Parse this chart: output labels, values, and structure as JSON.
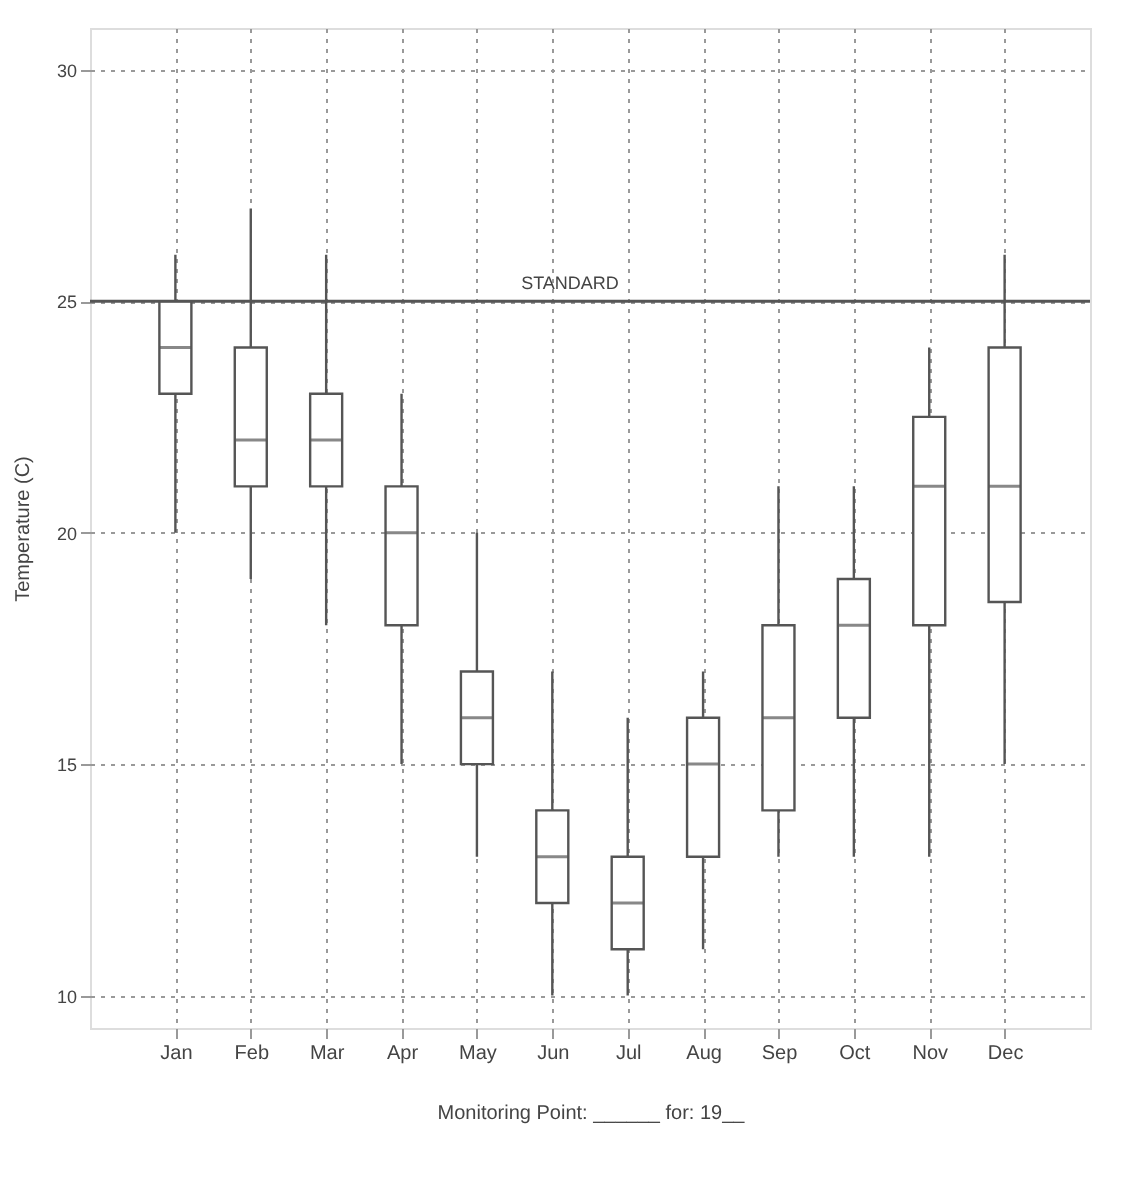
{
  "chart_data": {
    "type": "box",
    "xlabel": "Monitoring Point: ______ for: 19__",
    "ylabel": "Temperature (C)",
    "categories": [
      "Jan",
      "Feb",
      "Mar",
      "Apr",
      "May",
      "Jun",
      "Jul",
      "Aug",
      "Sep",
      "Oct",
      "Nov",
      "Dec"
    ],
    "boxes": [
      {
        "low": 20,
        "q1": 23,
        "median": 24,
        "q3": 25,
        "high": 26
      },
      {
        "low": 19,
        "q1": 21,
        "median": 22,
        "q3": 24,
        "high": 27
      },
      {
        "low": 18,
        "q1": 21,
        "median": 22,
        "q3": 23,
        "high": 26
      },
      {
        "low": 15,
        "q1": 18,
        "median": 20,
        "q3": 21,
        "high": 23
      },
      {
        "low": 13,
        "q1": 15,
        "median": 16,
        "q3": 17,
        "high": 20
      },
      {
        "low": 10,
        "q1": 12,
        "median": 13,
        "q3": 14,
        "high": 17
      },
      {
        "low": 10,
        "q1": 11,
        "median": 12,
        "q3": 13,
        "high": 16
      },
      {
        "low": 11,
        "q1": 13,
        "median": 15,
        "q3": 16,
        "high": 17
      },
      {
        "low": 13,
        "q1": 14,
        "median": 16,
        "q3": 18,
        "high": 21
      },
      {
        "low": 13,
        "q1": 16,
        "median": 18,
        "q3": 19,
        "high": 21
      },
      {
        "low": 13,
        "q1": 18,
        "median": 21,
        "q3": 22.5,
        "high": 24
      },
      {
        "low": 15,
        "q1": 18.5,
        "median": 21,
        "q3": 24,
        "high": 26
      }
    ],
    "color": "#555555",
    "ylim": [
      9.3,
      30.9
    ],
    "yticks": [
      10,
      15,
      20,
      25,
      30
    ],
    "grid": true,
    "ref_lines": [
      {
        "axis": "y",
        "value": 25,
        "label": "STANDARD",
        "color": "#555555",
        "line_style": "solid"
      }
    ]
  }
}
